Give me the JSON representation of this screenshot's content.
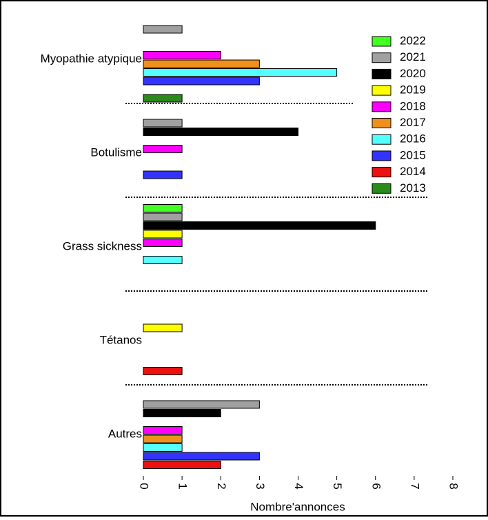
{
  "chart_data": {
    "type": "barh",
    "categories": [
      "Myopathie atypique",
      "Botulisme",
      "Grass sickness",
      "Tétanos",
      "Autres"
    ],
    "series": [
      {
        "name": "2022",
        "color": "#44ff22",
        "values": [
          0,
          0,
          1,
          0,
          0
        ]
      },
      {
        "name": "2021",
        "color": "#a0a0a0",
        "values": [
          1,
          1,
          1,
          0,
          3
        ]
      },
      {
        "name": "2020",
        "color": "#000000",
        "values": [
          0,
          4,
          6,
          0,
          2
        ]
      },
      {
        "name": "2019",
        "color": "#ffff00",
        "values": [
          0,
          0,
          1,
          1,
          0
        ]
      },
      {
        "name": "2018",
        "color": "#ff00ff",
        "values": [
          2,
          1,
          1,
          0,
          1
        ]
      },
      {
        "name": "2017",
        "color": "#f0901c",
        "values": [
          3,
          0,
          0,
          0,
          1
        ]
      },
      {
        "name": "2016",
        "color": "#55ffff",
        "values": [
          5,
          0,
          1,
          0,
          1
        ]
      },
      {
        "name": "2015",
        "color": "#3333ff",
        "values": [
          3,
          1,
          0,
          0,
          3
        ]
      },
      {
        "name": "2014",
        "color": "#ee1111",
        "values": [
          0,
          0,
          0,
          1,
          2
        ]
      },
      {
        "name": "2013",
        "color": "#2a8a1a",
        "values": [
          1,
          0,
          0,
          0,
          0
        ]
      }
    ],
    "xlabel": "Nombre'annonces",
    "xlim": [
      0,
      8
    ],
    "xticks": [
      0,
      1,
      2,
      3,
      4,
      5,
      6,
      7,
      8
    ],
    "legend": "upper right"
  }
}
